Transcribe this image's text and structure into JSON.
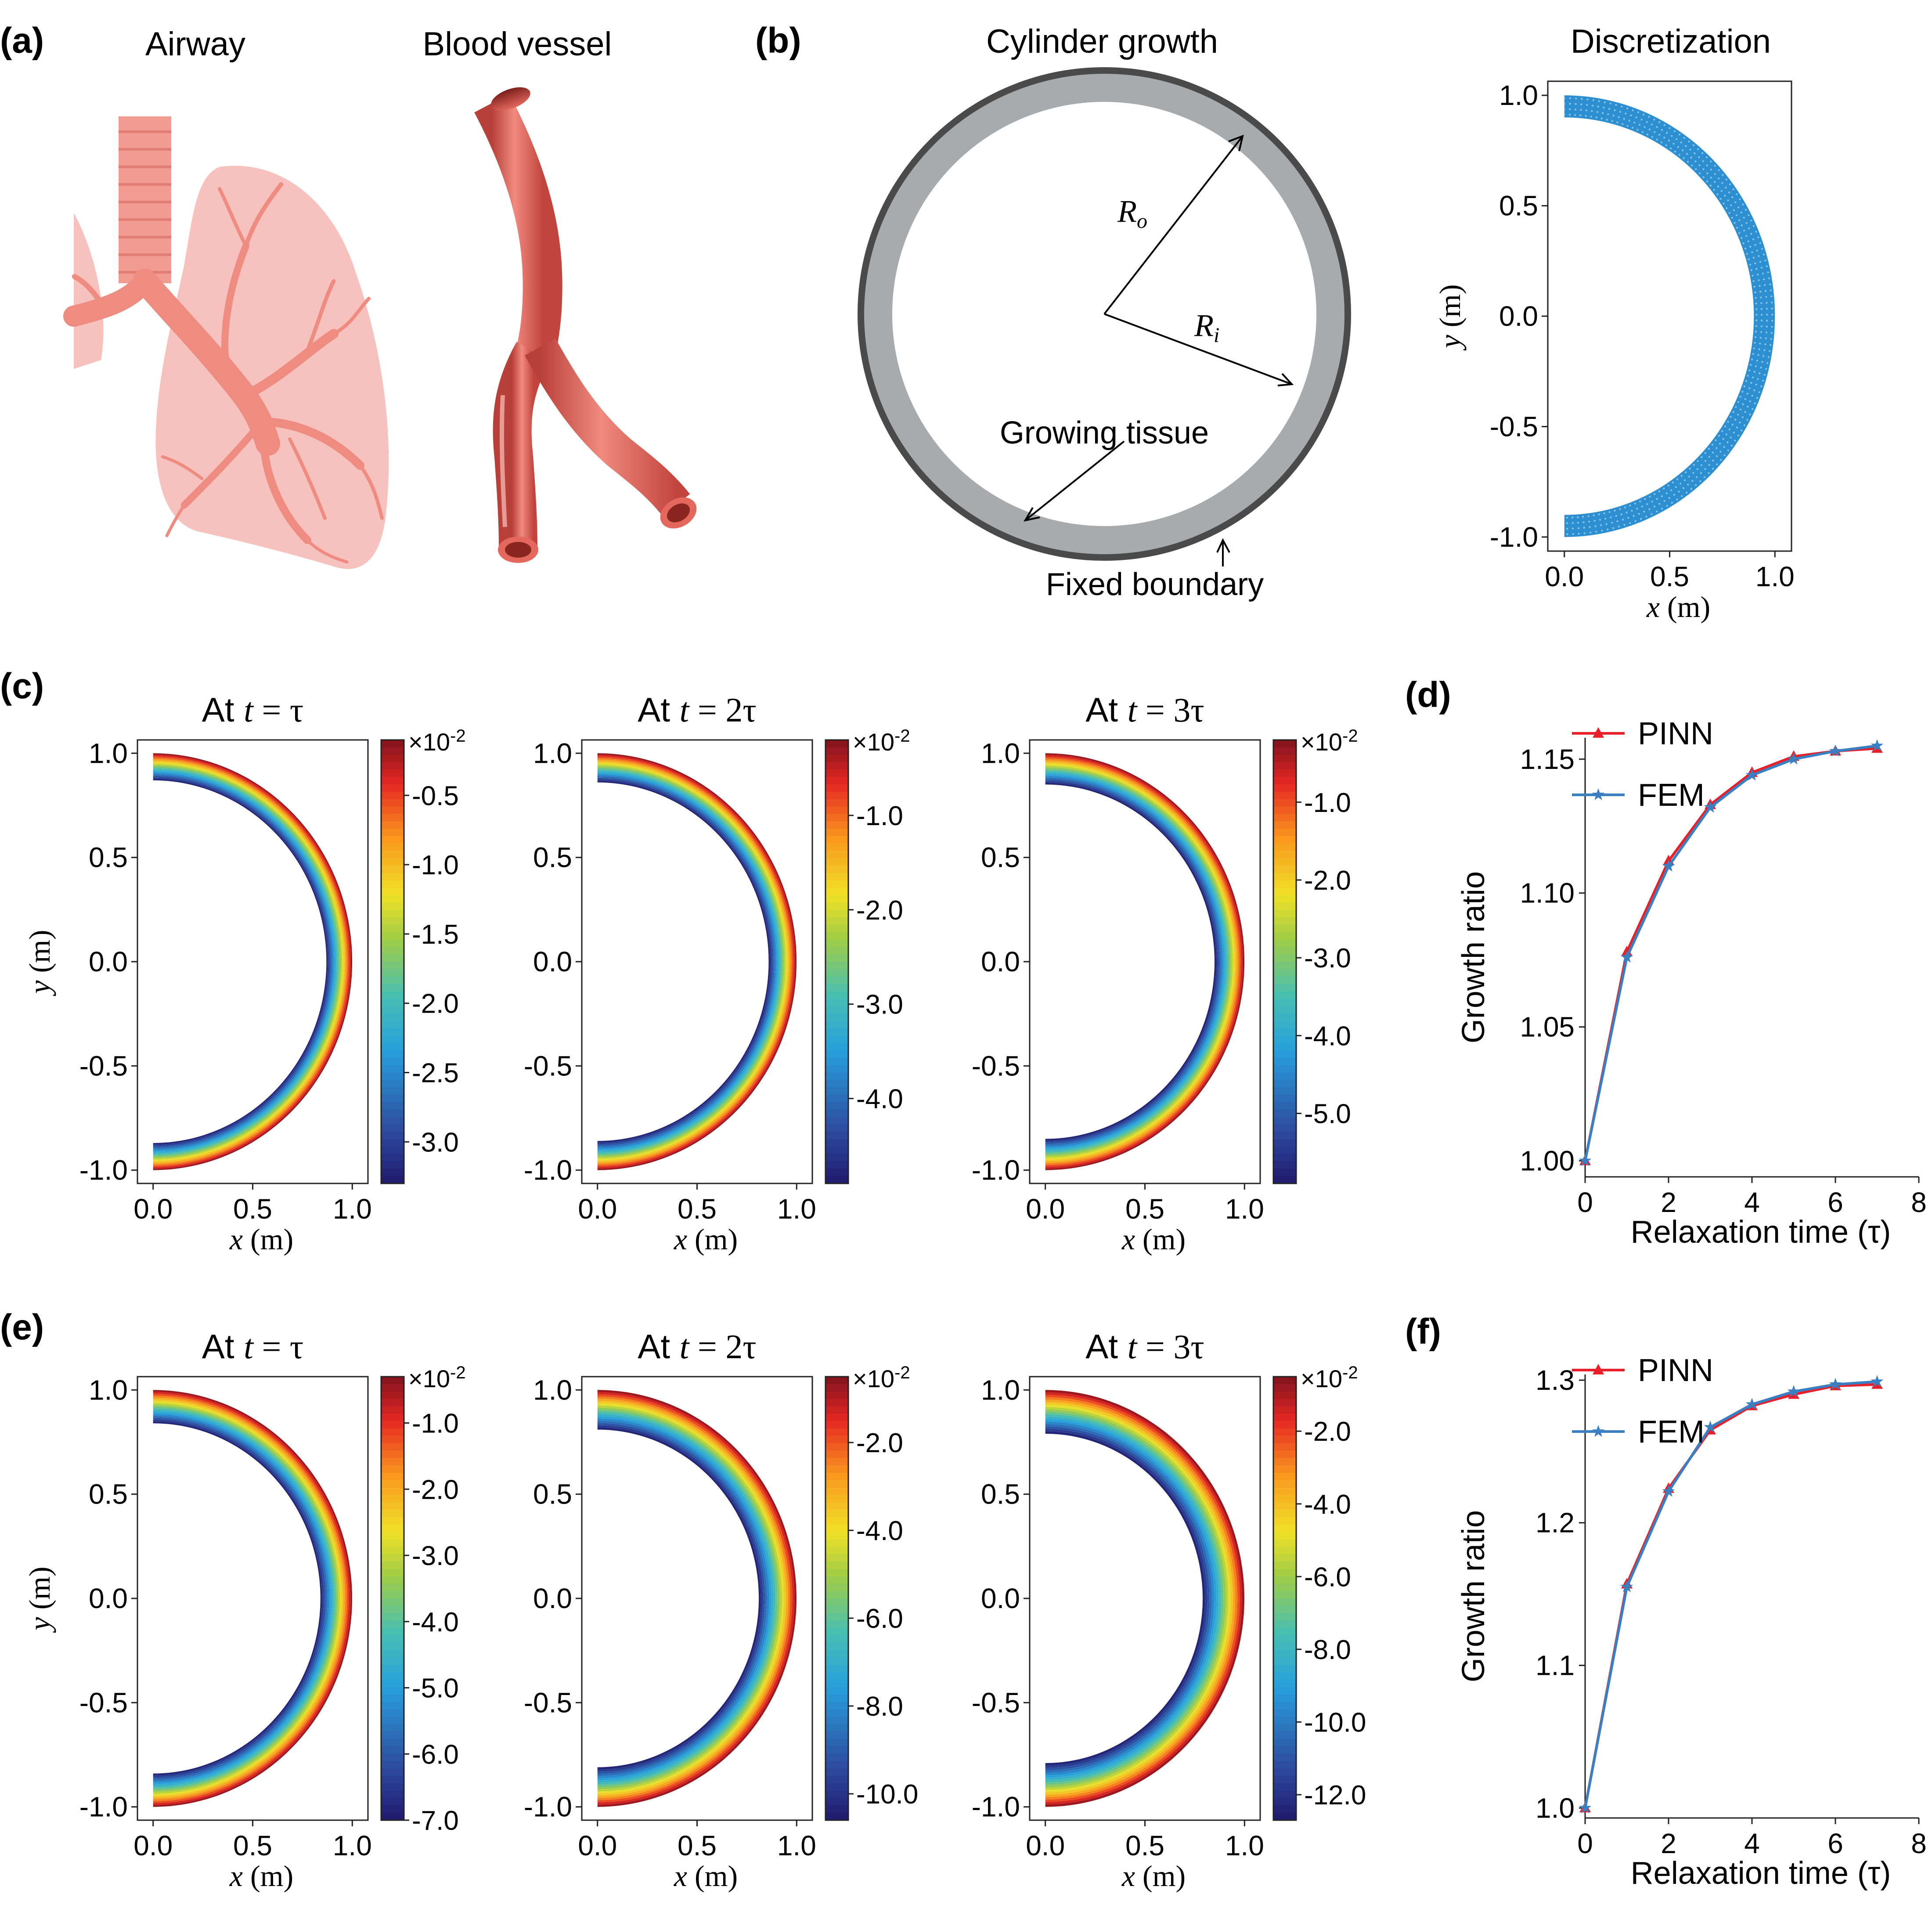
{
  "figure": {
    "panels": {
      "a": {
        "letter": "(a)",
        "airway_title": "Airway",
        "vessel_title": "Blood vessel"
      },
      "b": {
        "letter": "(b)",
        "left_title": "Cylinder growth",
        "right_title": "Discretization",
        "label_ro": "R",
        "label_ro_sub": "o",
        "label_ri": "R",
        "label_ri_sub": "i",
        "label_growing": "Growing tissue",
        "label_fixed": "Fixed boundary"
      },
      "c": {
        "letter": "(c)"
      },
      "d": {
        "letter": "(d)"
      },
      "e": {
        "letter": "(e)"
      },
      "f": {
        "letter": "(f)"
      }
    },
    "colors": {
      "pinn": "#e8202a",
      "fem": "#3a7fc1",
      "mesh": "#2e8fd0",
      "ring_gray": "#a8abad",
      "ring_dark": "#4a4a4a",
      "lung": "#f7c2bd",
      "airway": "#f29b91",
      "vessel": "#e5685e"
    }
  },
  "chart_data": [
    {
      "id": "b-mesh",
      "type": "scatter",
      "title": "Discretization",
      "xlabel": "x (m)",
      "ylabel": "y (m)",
      "xlim": [
        0.0,
        1.0
      ],
      "ylim": [
        -1.0,
        1.0
      ],
      "xticks": [
        "0.0",
        "0.5",
        "1.0"
      ],
      "yticks": [
        "1.0",
        "0.5",
        "0.0",
        "-0.5",
        "-1.0"
      ],
      "inner_radius": 0.9,
      "outer_radius": 1.0
    },
    {
      "id": "c1",
      "type": "heatmap",
      "title_prefix": "At ",
      "title_var": "t",
      "title_suffix": " = τ",
      "xlabel": "x (m)",
      "ylabel": "y (m)",
      "xticks": [
        "0.0",
        "0.5",
        "1.0"
      ],
      "yticks": [
        "1.0",
        "0.5",
        "0.0",
        "-0.5",
        "-1.0"
      ],
      "inner_radius": 0.87,
      "outer_radius": 1.0,
      "vmin": -3.3,
      "vmax": -0.1,
      "scale_label": "×10",
      "scale_exp": "-2",
      "colorbar_ticks": [
        -0.5,
        -1.0,
        -1.5,
        -2.0,
        -2.5,
        -3.0
      ],
      "colorbar_tick_labels": [
        "-0.5",
        "-1.0",
        "-1.5",
        "-2.0",
        "-2.5",
        "-3.0"
      ]
    },
    {
      "id": "c2",
      "type": "heatmap",
      "title_prefix": "At ",
      "title_var": "t",
      "title_suffix": " = 2τ",
      "xlabel": "x (m)",
      "ylabel": "y (m)",
      "xticks": [
        "0.0",
        "0.5",
        "1.0"
      ],
      "yticks": [
        "1.0",
        "0.5",
        "0.0",
        "-0.5",
        "-1.0"
      ],
      "inner_radius": 0.86,
      "outer_radius": 1.0,
      "vmin": -4.9,
      "vmax": -0.2,
      "scale_label": "×10",
      "scale_exp": "-2",
      "colorbar_ticks": [
        -1.0,
        -2.0,
        -3.0,
        -4.0
      ],
      "colorbar_tick_labels": [
        "-1.0",
        "-2.0",
        "-3.0",
        "-4.0"
      ]
    },
    {
      "id": "c3",
      "type": "heatmap",
      "title_prefix": "At ",
      "title_var": "t",
      "title_suffix": " = 3τ",
      "xlabel": "x (m)",
      "ylabel": "y (m)",
      "xticks": [
        "0.0",
        "0.5",
        "1.0"
      ],
      "yticks": [
        "1.0",
        "0.5",
        "0.0",
        "-0.5",
        "-1.0"
      ],
      "inner_radius": 0.85,
      "outer_radius": 1.0,
      "vmin": -5.9,
      "vmax": -0.2,
      "scale_label": "×10",
      "scale_exp": "-2",
      "colorbar_ticks": [
        -1.0,
        -2.0,
        -3.0,
        -4.0,
        -5.0
      ],
      "colorbar_tick_labels": [
        "-1.0",
        "-2.0",
        "-3.0",
        "-4.0",
        "-5.0"
      ]
    },
    {
      "id": "d",
      "type": "line",
      "title": "",
      "xlabel": "Relaxation time (τ)",
      "ylabel": "Growth ratio",
      "xlim": [
        0,
        8
      ],
      "ylim": [
        0.994,
        1.158
      ],
      "xticks": [
        0,
        2,
        4,
        6,
        8
      ],
      "yticks": [
        1.0,
        1.05,
        1.1,
        1.15
      ],
      "ytick_labels": [
        "1.00",
        "1.05",
        "1.10",
        "1.15"
      ],
      "x": [
        0,
        1,
        2,
        3,
        4,
        5,
        6,
        7
      ],
      "series": [
        {
          "name": "PINN",
          "marker": "triangle",
          "values": [
            1.0,
            1.078,
            1.112,
            1.133,
            1.145,
            1.151,
            1.153,
            1.154
          ]
        },
        {
          "name": "FEM",
          "marker": "star",
          "values": [
            1.0,
            1.076,
            1.11,
            1.132,
            1.144,
            1.15,
            1.153,
            1.155
          ]
        }
      ]
    },
    {
      "id": "e1",
      "type": "heatmap",
      "title_prefix": "At ",
      "title_var": "t",
      "title_suffix": " = τ",
      "xlabel": "x (m)",
      "ylabel": "y (m)",
      "xticks": [
        "0.0",
        "0.5",
        "1.0"
      ],
      "yticks": [
        "1.0",
        "0.5",
        "0.0",
        "-0.5",
        "-1.0"
      ],
      "inner_radius": 0.84,
      "outer_radius": 1.0,
      "vmin": -7.0,
      "vmax": -0.3,
      "scale_label": "×10",
      "scale_exp": "-2",
      "colorbar_ticks": [
        -1.0,
        -2.0,
        -3.0,
        -4.0,
        -5.0,
        -6.0,
        -7.0
      ],
      "colorbar_tick_labels": [
        "-1.0",
        "-2.0",
        "-3.0",
        "-4.0",
        "-5.0",
        "-6.0",
        "-7.0"
      ]
    },
    {
      "id": "e2",
      "type": "heatmap",
      "title_prefix": "At ",
      "title_var": "t",
      "title_suffix": " = 2τ",
      "xlabel": "x (m)",
      "ylabel": "y (m)",
      "xticks": [
        "0.0",
        "0.5",
        "1.0"
      ],
      "yticks": [
        "1.0",
        "0.5",
        "0.0",
        "-0.5",
        "-1.0"
      ],
      "inner_radius": 0.81,
      "outer_radius": 1.0,
      "vmin": -10.6,
      "vmax": -0.5,
      "scale_label": "×10",
      "scale_exp": "-2",
      "colorbar_ticks": [
        -2.0,
        -4.0,
        -6.0,
        -8.0,
        -10.0
      ],
      "colorbar_tick_labels": [
        "-2.0",
        "-4.0",
        "-6.0",
        "-8.0",
        "-10.0"
      ]
    },
    {
      "id": "e3",
      "type": "heatmap",
      "title_prefix": "At ",
      "title_var": "t",
      "title_suffix": " = 3τ",
      "xlabel": "x (m)",
      "ylabel": "y (m)",
      "xticks": [
        "0.0",
        "0.5",
        "1.0"
      ],
      "yticks": [
        "1.0",
        "0.5",
        "0.0",
        "-0.5",
        "-1.0"
      ],
      "inner_radius": 0.79,
      "outer_radius": 1.0,
      "vmin": -12.7,
      "vmax": -0.5,
      "scale_label": "×10",
      "scale_exp": "-2",
      "colorbar_ticks": [
        -2.0,
        -4.0,
        -6.0,
        -8.0,
        -10.0,
        -12.0
      ],
      "colorbar_tick_labels": [
        "-2.0",
        "-4.0",
        "-6.0",
        "-8.0",
        "-10.0",
        "-12.0"
      ]
    },
    {
      "id": "f",
      "type": "line",
      "title": "",
      "xlabel": "Relaxation time (τ)",
      "ylabel": "Growth ratio",
      "xlim": [
        0,
        8
      ],
      "ylim": [
        0.993,
        1.304
      ],
      "xticks": [
        0,
        2,
        4,
        6,
        8
      ],
      "yticks": [
        1.0,
        1.1,
        1.2,
        1.3
      ],
      "ytick_labels": [
        "1.0",
        "1.1",
        "1.2",
        "1.3"
      ],
      "x": [
        0,
        1,
        2,
        3,
        4,
        5,
        6,
        7
      ],
      "series": [
        {
          "name": "PINN",
          "marker": "triangle",
          "values": [
            1.0,
            1.157,
            1.224,
            1.265,
            1.282,
            1.29,
            1.296,
            1.297
          ]
        },
        {
          "name": "FEM",
          "marker": "star",
          "values": [
            1.0,
            1.155,
            1.222,
            1.267,
            1.283,
            1.292,
            1.297,
            1.299
          ]
        }
      ]
    }
  ]
}
